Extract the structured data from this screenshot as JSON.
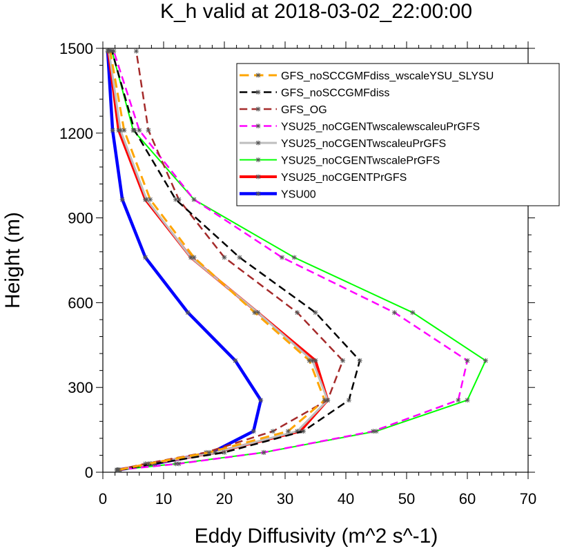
{
  "chart_data": {
    "type": "line",
    "title": "K_h valid at 2018-03-02_22:00:00",
    "xlabel": "Eddy Diffusivity (m^2 s^-1)",
    "ylabel": "Height (m)",
    "xlim": [
      0,
      70
    ],
    "ylim": [
      0,
      1500
    ],
    "x_ticks": [
      "0",
      "10",
      "20",
      "30",
      "40",
      "50",
      "60",
      "70"
    ],
    "y_ticks": [
      "0",
      "300",
      "600",
      "900",
      "1200",
      "1500"
    ],
    "grid": false,
    "legend_position": "top-right",
    "heights": [
      8,
      30,
      70,
      145,
      255,
      395,
      565,
      760,
      965,
      1210,
      1490
    ],
    "series": [
      {
        "name": "GFS_noSCCGMFdiss_wscaleYSU_SLYSU",
        "color": "#FFA500",
        "dash": "dashed",
        "width": 3,
        "values": [
          2.6,
          7.5,
          17.5,
          30.5,
          36.5,
          34.0,
          25.0,
          15.0,
          7.8,
          3.5,
          1.2
        ]
      },
      {
        "name": "GFS_noSCCGMFdiss",
        "color": "#000000",
        "dash": "dashed",
        "width": 2.5,
        "values": [
          2.8,
          8.5,
          20.0,
          33.0,
          40.5,
          42.3,
          35.0,
          22.5,
          12.0,
          5.2,
          1.5
        ]
      },
      {
        "name": "GFS_OG",
        "color": "#A52A2A",
        "dash": "dashed",
        "width": 2.5,
        "values": [
          2.4,
          7.0,
          17.0,
          28.0,
          37.0,
          39.5,
          32.0,
          20.0,
          12.5,
          7.5,
          5.5
        ]
      },
      {
        "name": "YSU25_noCGENTwscalewscaleuPrGFS",
        "color": "#FF00FF",
        "dash": "dashed",
        "width": 2.5,
        "values": [
          2.3,
          12.5,
          26.5,
          44.5,
          58.5,
          60.0,
          48.0,
          29.5,
          15.0,
          6.0,
          1.8
        ]
      },
      {
        "name": "YSU25_noCGENTwscaleuPrGFS",
        "color": "#BEBEBE",
        "dash": "solid",
        "width": 3,
        "values": [
          2.5,
          7.8,
          18.5,
          32.0,
          37.0,
          34.5,
          25.5,
          14.5,
          7.2,
          2.9,
          1.0
        ]
      },
      {
        "name": "YSU25_noCGENTwscalePrGFS",
        "color": "#00FF00",
        "dash": "solid",
        "width": 2,
        "values": [
          2.3,
          12.0,
          26.5,
          45.0,
          60.0,
          63.0,
          51.0,
          31.5,
          15.0,
          5.0,
          1.5
        ]
      },
      {
        "name": "YSU25_noCGENTPrGFS",
        "color": "#FF0000",
        "dash": "solid",
        "width": 4,
        "values": [
          2.5,
          8.0,
          18.5,
          32.5,
          37.0,
          35.0,
          25.5,
          14.5,
          7.0,
          2.6,
          0.9
        ]
      },
      {
        "name": "YSU00",
        "color": "#0000FF",
        "dash": "solid",
        "width": 4.5,
        "values": [
          2.5,
          8.5,
          18.0,
          24.8,
          26.0,
          21.8,
          14.0,
          7.0,
          3.2,
          1.6,
          0.8
        ]
      }
    ]
  }
}
